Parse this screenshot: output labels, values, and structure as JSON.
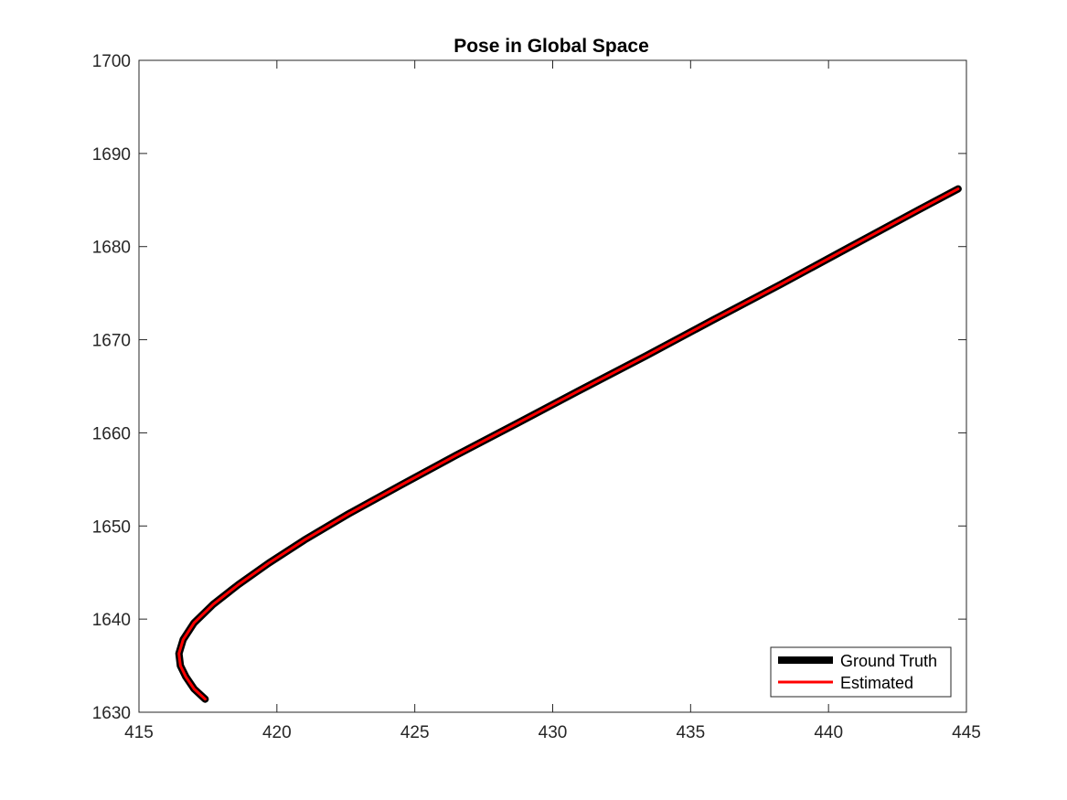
{
  "chart_data": {
    "type": "line",
    "title": "Pose in Global Space",
    "xlabel": "",
    "ylabel": "",
    "xlim": [
      415,
      445
    ],
    "ylim": [
      1630,
      1700
    ],
    "xticks": [
      "415",
      "420",
      "425",
      "430",
      "435",
      "440",
      "445"
    ],
    "yticks": [
      "1630",
      "1640",
      "1650",
      "1660",
      "1670",
      "1680",
      "1690",
      "1700"
    ],
    "grid": false,
    "legend_position": "bottom-right",
    "series": [
      {
        "name": "Ground Truth",
        "color": "#000000",
        "x": [
          417.4,
          417.0,
          416.7,
          416.5,
          416.45,
          416.6,
          417.0,
          417.7,
          418.6,
          419.7,
          421.0,
          422.6,
          424.5,
          426.5,
          428.7,
          431.0,
          433.4,
          435.8,
          438.3,
          440.8,
          443.3,
          444.7
        ],
        "y": [
          1631.4,
          1632.5,
          1633.8,
          1635.0,
          1636.3,
          1637.8,
          1639.6,
          1641.6,
          1643.7,
          1646.0,
          1648.5,
          1651.3,
          1654.4,
          1657.6,
          1661.0,
          1664.6,
          1668.3,
          1672.1,
          1676.0,
          1680.0,
          1684.0,
          1686.2
        ]
      },
      {
        "name": "Estimated",
        "color": "#ff0000",
        "x": [
          417.4,
          417.0,
          416.7,
          416.5,
          416.45,
          416.6,
          417.0,
          417.7,
          418.6,
          419.7,
          421.0,
          422.6,
          424.5,
          426.5,
          428.7,
          431.0,
          433.4,
          435.8,
          438.3,
          440.8,
          443.3,
          444.7
        ],
        "y": [
          1631.4,
          1632.5,
          1633.8,
          1635.0,
          1636.3,
          1637.8,
          1639.6,
          1641.6,
          1643.7,
          1646.0,
          1648.5,
          1651.3,
          1654.4,
          1657.6,
          1661.0,
          1664.6,
          1668.3,
          1672.1,
          1676.0,
          1680.0,
          1684.0,
          1686.2
        ]
      }
    ]
  }
}
